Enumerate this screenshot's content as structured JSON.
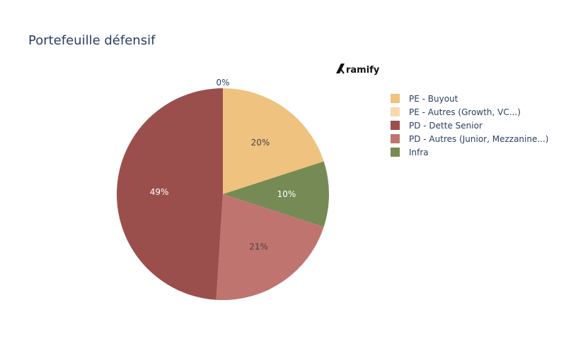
{
  "chart_data": {
    "type": "pie",
    "title": "Portefeuille défensif",
    "categories": [
      "PE - Buyout",
      "PE - Autres (Growth, VC...)",
      "PD - Dette Senior",
      "PD - Autres (Junior, Mezzanine...)",
      "Infra"
    ],
    "values": [
      20,
      0,
      49,
      21,
      10
    ],
    "labels": [
      "20%",
      "0%",
      "49%",
      "21%",
      "10%"
    ],
    "colors": [
      "#f0c27f",
      "#f8d8ac",
      "#9b4f4d",
      "#c07470",
      "#768a56"
    ],
    "slice_order": [
      "PE - Buyout",
      "Infra",
      "PD - Autres (Junior, Mezzanine...)",
      "PD - Dette Senior",
      "PE - Autres (Growth, VC...)"
    ],
    "label_text_colors": {
      "PE - Buyout": "#444444",
      "Infra": "#ffffff",
      "PD - Autres (Junior, Mezzanine...)": "#444444",
      "PD - Dette Senior": "#ffffff",
      "PE - Autres (Growth, VC...)": "#2a3f5f"
    },
    "legend_placement": "right",
    "direction": "clockwise",
    "start": "top"
  },
  "logo": {
    "text": "ramify",
    "icon": "ramify-logo-icon"
  }
}
